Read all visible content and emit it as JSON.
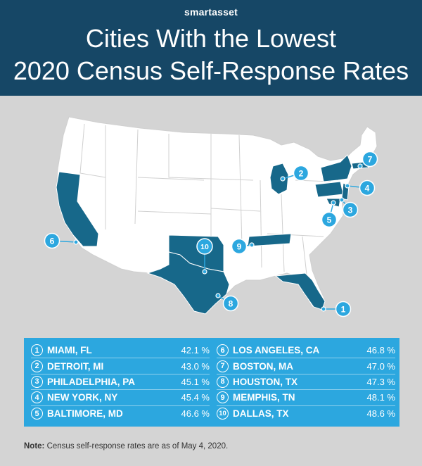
{
  "header": {
    "brand": "smartasset",
    "title_line1": "Cities With the Lowest",
    "title_line2": "2020 Census Self-Response Rates"
  },
  "colors": {
    "header_bg": "#164766",
    "page_bg": "#d4d4d4",
    "highlight_state": "#17688a",
    "marker": "#2ca7df",
    "table_bg": "#2ca7df"
  },
  "map": {
    "highlighted_states": [
      "California",
      "Texas",
      "Oklahoma",
      "Tennessee",
      "Florida",
      "Michigan",
      "New York",
      "Pennsylvania",
      "Maryland",
      "Massachusetts",
      "New Jersey"
    ],
    "markers": [
      "1",
      "2",
      "3",
      "4",
      "5",
      "6",
      "7",
      "8",
      "9",
      "10"
    ]
  },
  "ranking": [
    {
      "rank": "1",
      "city": "MIAMI, FL",
      "rate": "42.1 %"
    },
    {
      "rank": "2",
      "city": "DETROIT, MI",
      "rate": "43.0 %"
    },
    {
      "rank": "3",
      "city": "PHILADELPHIA, PA",
      "rate": "45.1 %"
    },
    {
      "rank": "4",
      "city": "NEW YORK, NY",
      "rate": "45.4 %"
    },
    {
      "rank": "5",
      "city": "BALTIMORE, MD",
      "rate": "46.6 %"
    },
    {
      "rank": "6",
      "city": "LOS ANGELES, CA",
      "rate": "46.8 %"
    },
    {
      "rank": "7",
      "city": "BOSTON, MA",
      "rate": "47.0 %"
    },
    {
      "rank": "8",
      "city": "HOUSTON, TX",
      "rate": "47.3 %"
    },
    {
      "rank": "9",
      "city": "MEMPHIS, TN",
      "rate": "48.1 %"
    },
    {
      "rank": "10",
      "city": "DALLAS, TX",
      "rate": "48.6 %"
    }
  ],
  "note": {
    "label": "Note:",
    "text": " Census self-response rates are as of May 4, 2020."
  }
}
